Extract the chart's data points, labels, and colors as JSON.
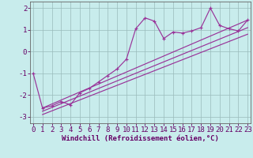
{
  "xlabel": "Windchill (Refroidissement éolien,°C)",
  "bg_color": "#c8ecec",
  "line_color": "#993399",
  "grid_color": "#99bbbb",
  "x_data": [
    0,
    1,
    2,
    3,
    4,
    5,
    6,
    7,
    8,
    9,
    10,
    11,
    12,
    13,
    14,
    15,
    16,
    17,
    18,
    19,
    20,
    21,
    22,
    23
  ],
  "series1": [
    -1.0,
    -2.6,
    -2.5,
    -2.3,
    -2.45,
    -1.9,
    -1.7,
    -1.4,
    -1.1,
    -0.8,
    -0.35,
    1.05,
    1.55,
    1.4,
    0.6,
    0.9,
    0.85,
    0.95,
    1.1,
    2.0,
    1.2,
    1.05,
    0.95,
    1.45
  ],
  "line1_x": [
    1,
    23
  ],
  "line1_y": [
    -2.6,
    1.45
  ],
  "line2_x": [
    1,
    23
  ],
  "line2_y": [
    -2.75,
    1.1
  ],
  "line3_x": [
    1,
    23
  ],
  "line3_y": [
    -2.9,
    0.8
  ],
  "ylim": [
    -3.3,
    2.3
  ],
  "xlim": [
    -0.3,
    23.3
  ],
  "yticks": [
    -3,
    -2,
    -1,
    0,
    1,
    2
  ],
  "xticks": [
    0,
    1,
    2,
    3,
    4,
    5,
    6,
    7,
    8,
    9,
    10,
    11,
    12,
    13,
    14,
    15,
    16,
    17,
    18,
    19,
    20,
    21,
    22,
    23
  ],
  "tick_fontsize": 6.5,
  "xlabel_fontsize": 6.5
}
